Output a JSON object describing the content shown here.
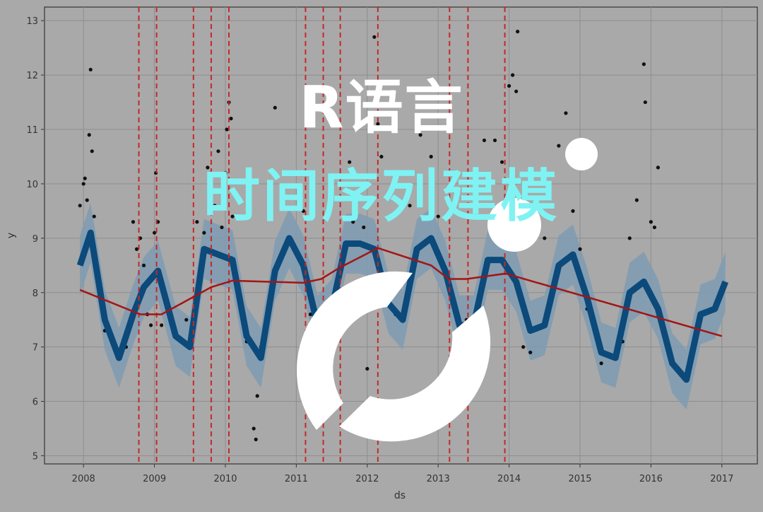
{
  "overlay": {
    "title": "R语言",
    "subtitle": "时间序列建模"
  },
  "chart_data": {
    "type": "line",
    "xlabel": "ds",
    "ylabel": "y",
    "xlim": [
      2007.45,
      2017.5
    ],
    "ylim": [
      4.85,
      13.25
    ],
    "x_ticks": [
      "2008",
      "2009",
      "2010",
      "2011",
      "2012",
      "2013",
      "2014",
      "2015",
      "2016",
      "2017"
    ],
    "y_ticks": [
      "5",
      "6",
      "7",
      "8",
      "9",
      "10",
      "11",
      "12",
      "13"
    ],
    "grid": true,
    "trend": {
      "x": [
        2007.95,
        2008.8,
        2009.1,
        2009.8,
        2010.1,
        2011.1,
        2011.35,
        2011.6,
        2012.15,
        2012.9,
        2013.15,
        2013.4,
        2013.95,
        2017.0
      ],
      "y": [
        8.05,
        7.6,
        7.6,
        8.1,
        8.22,
        8.18,
        8.25,
        8.45,
        8.82,
        8.5,
        8.25,
        8.25,
        8.35,
        7.2
      ]
    },
    "changepoints": [
      2008.78,
      2009.03,
      2009.55,
      2009.8,
      2010.05,
      2011.13,
      2011.38,
      2011.62,
      2012.15,
      2013.16,
      2013.42,
      2013.94
    ],
    "forecast": {
      "x": [
        2007.95,
        2008.1,
        2008.3,
        2008.5,
        2008.7,
        2008.85,
        2009.05,
        2009.3,
        2009.5,
        2009.7,
        2009.9,
        2010.1,
        2010.3,
        2010.5,
        2010.7,
        2010.9,
        2011.1,
        2011.3,
        2011.5,
        2011.7,
        2011.9,
        2012.1,
        2012.3,
        2012.5,
        2012.7,
        2012.9,
        2013.1,
        2013.3,
        2013.5,
        2013.7,
        2013.9,
        2014.1,
        2014.3,
        2014.5,
        2014.7,
        2014.9,
        2015.1,
        2015.3,
        2015.5,
        2015.7,
        2015.9,
        2016.1,
        2016.3,
        2016.5,
        2016.7,
        2016.9,
        2017.05
      ],
      "y": [
        8.5,
        9.1,
        7.5,
        6.8,
        7.6,
        8.1,
        8.4,
        7.2,
        7.0,
        8.8,
        8.7,
        8.6,
        7.2,
        6.8,
        8.4,
        9.0,
        8.5,
        7.4,
        7.7,
        8.9,
        8.9,
        8.8,
        7.8,
        7.5,
        8.8,
        9.0,
        8.4,
        7.4,
        7.4,
        8.6,
        8.6,
        8.2,
        7.3,
        7.4,
        8.5,
        8.7,
        7.9,
        6.9,
        6.8,
        8.0,
        8.2,
        7.7,
        6.7,
        6.4,
        7.6,
        7.7,
        8.2
      ],
      "band": 0.55
    },
    "observed": {
      "x": [
        2007.95,
        2008.0,
        2008.02,
        2008.05,
        2008.08,
        2008.1,
        2008.12,
        2008.15,
        2008.2,
        2008.25,
        2008.3,
        2008.5,
        2008.6,
        2008.7,
        2008.75,
        2008.8,
        2008.85,
        2008.9,
        2008.95,
        2009.0,
        2009.02,
        2009.05,
        2009.1,
        2009.3,
        2009.45,
        2009.6,
        2009.7,
        2009.75,
        2009.85,
        2009.9,
        2009.95,
        2010.0,
        2010.02,
        2010.05,
        2010.08,
        2010.1,
        2010.3,
        2010.4,
        2010.43,
        2010.45,
        2010.5,
        2010.7,
        2010.8,
        2010.9,
        2011.1,
        2011.2,
        2011.7,
        2011.75,
        2011.8,
        2011.95,
        2012.0,
        2012.1,
        2012.15,
        2012.2,
        2012.4,
        2012.6,
        2012.75,
        2012.9,
        2013.0,
        2013.2,
        2013.4,
        2013.65,
        2013.8,
        2013.9,
        2014.0,
        2014.05,
        2014.1,
        2014.12,
        2014.2,
        2014.3,
        2014.5,
        2014.7,
        2014.8,
        2014.9,
        2015.0,
        2015.1,
        2015.3,
        2015.5,
        2015.6,
        2015.7,
        2015.8,
        2015.9,
        2015.92,
        2016.0,
        2016.05,
        2016.1
      ],
      "y": [
        9.6,
        10.0,
        10.1,
        9.7,
        10.9,
        12.1,
        10.6,
        9.4,
        8.2,
        7.8,
        7.3,
        6.8,
        7.0,
        9.3,
        8.8,
        9.0,
        8.5,
        7.6,
        7.4,
        9.1,
        10.2,
        9.3,
        7.4,
        7.2,
        7.5,
        9.3,
        9.1,
        10.3,
        9.6,
        10.6,
        9.2,
        10.2,
        11.0,
        11.5,
        11.2,
        9.4,
        7.1,
        5.5,
        5.3,
        6.1,
        7.0,
        11.4,
        9.6,
        10.2,
        9.5,
        7.6,
        10.0,
        10.4,
        9.3,
        9.2,
        6.6,
        12.7,
        11.1,
        10.5,
        7.6,
        9.6,
        10.9,
        10.5,
        9.4,
        7.8,
        7.5,
        10.8,
        10.8,
        10.4,
        11.8,
        12.0,
        11.7,
        12.8,
        7.0,
        6.9,
        9.0,
        10.7,
        11.3,
        9.5,
        8.8,
        7.7,
        6.7,
        6.9,
        7.1,
        9.0,
        9.7,
        12.2,
        11.5,
        9.3,
        9.2,
        10.3
      ]
    }
  }
}
